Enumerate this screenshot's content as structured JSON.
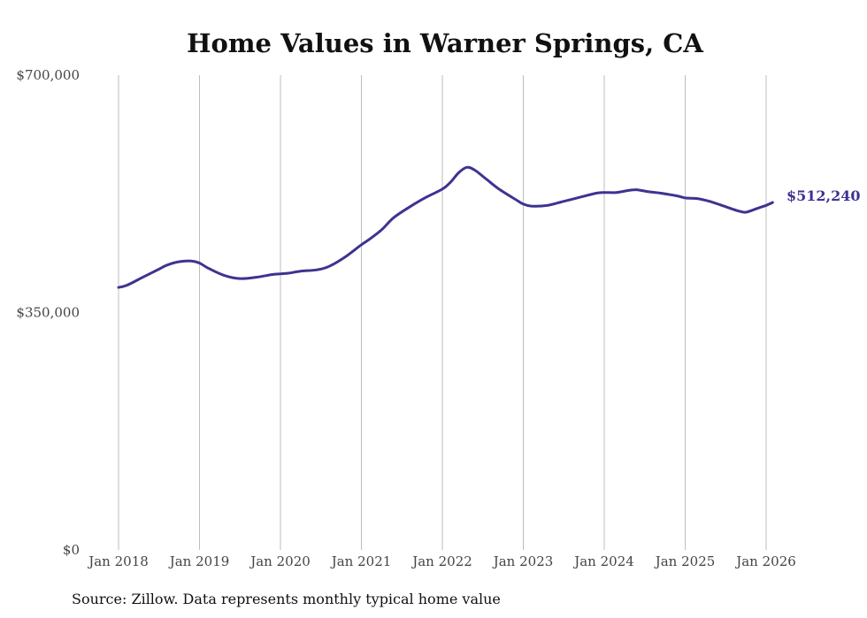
{
  "chart_data": {
    "type": "line",
    "title": "Home Values in Warner Springs, CA",
    "source": "Source: Zillow. Data represents monthly typical home value",
    "line_color": "#3d3391",
    "ylim": [
      0,
      700000
    ],
    "y_ticks": [
      {
        "value": 0,
        "label": "$0"
      },
      {
        "value": 350000,
        "label": "$350,000"
      },
      {
        "value": 700000,
        "label": "$700,000"
      }
    ],
    "x_ticks": [
      {
        "value": 2018,
        "label": "Jan 2018"
      },
      {
        "value": 2019,
        "label": "Jan 2019"
      },
      {
        "value": 2020,
        "label": "Jan 2020"
      },
      {
        "value": 2021,
        "label": "Jan 2021"
      },
      {
        "value": 2022,
        "label": "Jan 2022"
      },
      {
        "value": 2023,
        "label": "Jan 2023"
      },
      {
        "value": 2024,
        "label": "Jan 2024"
      },
      {
        "value": 2025,
        "label": "Jan 2025"
      },
      {
        "value": 2026,
        "label": "Jan 2026"
      }
    ],
    "xlim": [
      2018,
      2026
    ],
    "end_label": "$512,240",
    "series": [
      {
        "name": "Typical home value",
        "x": [
          2018.0,
          2018.1,
          2018.3,
          2018.5,
          2018.6,
          2018.75,
          2018.9,
          2019.0,
          2019.1,
          2019.3,
          2019.5,
          2019.7,
          2019.9,
          2020.0,
          2020.1,
          2020.25,
          2020.45,
          2020.6,
          2020.8,
          2021.0,
          2021.1,
          2021.25,
          2021.4,
          2021.6,
          2021.8,
          2022.0,
          2022.1,
          2022.2,
          2022.3,
          2022.4,
          2022.55,
          2022.7,
          2022.9,
          2023.0,
          2023.1,
          2023.3,
          2023.5,
          2023.7,
          2023.9,
          2024.0,
          2024.15,
          2024.3,
          2024.4,
          2024.55,
          2024.7,
          2024.9,
          2025.0,
          2025.15,
          2025.3,
          2025.5,
          2025.65,
          2025.75,
          2025.9,
          2026.0,
          2026.08
        ],
        "values": [
          387000,
          390000,
          402000,
          414000,
          420000,
          425000,
          426000,
          423000,
          416000,
          405000,
          400000,
          402000,
          406000,
          407000,
          408000,
          411000,
          413000,
          418000,
          432000,
          450000,
          458000,
          472000,
          490000,
          506000,
          520000,
          532000,
          542000,
          556000,
          564000,
          560000,
          546000,
          532000,
          517000,
          510000,
          507000,
          508000,
          514000,
          520000,
          526000,
          527000,
          527000,
          530000,
          531000,
          528000,
          526000,
          522000,
          519000,
          518000,
          514000,
          506000,
          500000,
          498000,
          504000,
          508000,
          512240
        ]
      }
    ]
  }
}
